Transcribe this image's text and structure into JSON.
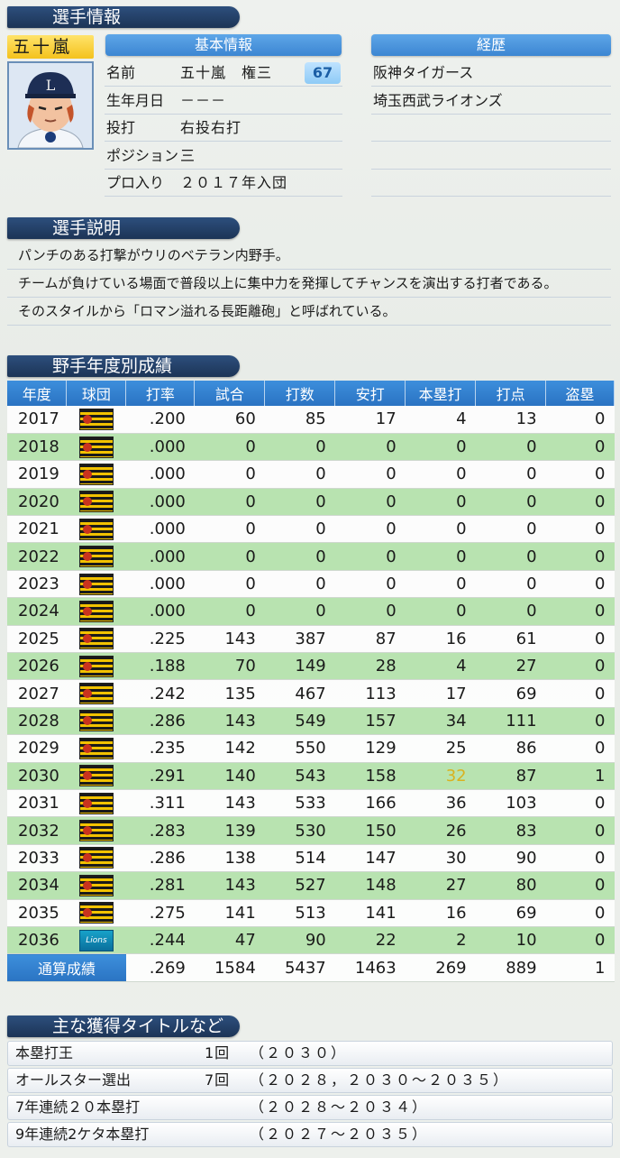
{
  "header": {
    "title": "選手情報"
  },
  "player": {
    "name": "五十嵐",
    "avatar_icon": "player-avatar-lions-cap"
  },
  "basic_info": {
    "title": "基本情報",
    "level": "67",
    "rows": [
      {
        "label": "名前",
        "value": "五十嵐　権三"
      },
      {
        "label": "生年月日",
        "value": "－－－"
      },
      {
        "label": "投打",
        "value": "右投右打"
      },
      {
        "label": "ポジション",
        "value": "三"
      },
      {
        "label": "プロ入り",
        "value": "２０１７年入団"
      }
    ]
  },
  "career": {
    "title": "経歴",
    "teams": [
      "阪神タイガース",
      "埼玉西武ライオンズ"
    ]
  },
  "description": {
    "title": "選手説明",
    "lines": [
      "パンチのある打撃がウリのベテラン内野手。",
      "チームが負けている場面で普段以上に集中力を発揮してチャンスを演出する打者である。",
      "そのスタイルから「ロマン溢れる長距離砲」と呼ばれている。"
    ]
  },
  "stats": {
    "title": "野手年度別成績",
    "headers": [
      "年度",
      "球団",
      "打率",
      "試合",
      "打数",
      "安打",
      "本塁打",
      "打点",
      "盗塁"
    ],
    "rows": [
      {
        "year": "2017",
        "team": "tigers",
        "avg": ".200",
        "g": "60",
        "ab": "85",
        "h": "17",
        "hr": "4",
        "rbi": "13",
        "sb": "0"
      },
      {
        "year": "2018",
        "team": "tigers",
        "avg": ".000",
        "g": "0",
        "ab": "0",
        "h": "0",
        "hr": "0",
        "rbi": "0",
        "sb": "0"
      },
      {
        "year": "2019",
        "team": "tigers",
        "avg": ".000",
        "g": "0",
        "ab": "0",
        "h": "0",
        "hr": "0",
        "rbi": "0",
        "sb": "0"
      },
      {
        "year": "2020",
        "team": "tigers",
        "avg": ".000",
        "g": "0",
        "ab": "0",
        "h": "0",
        "hr": "0",
        "rbi": "0",
        "sb": "0"
      },
      {
        "year": "2021",
        "team": "tigers",
        "avg": ".000",
        "g": "0",
        "ab": "0",
        "h": "0",
        "hr": "0",
        "rbi": "0",
        "sb": "0"
      },
      {
        "year": "2022",
        "team": "tigers",
        "avg": ".000",
        "g": "0",
        "ab": "0",
        "h": "0",
        "hr": "0",
        "rbi": "0",
        "sb": "0"
      },
      {
        "year": "2023",
        "team": "tigers",
        "avg": ".000",
        "g": "0",
        "ab": "0",
        "h": "0",
        "hr": "0",
        "rbi": "0",
        "sb": "0"
      },
      {
        "year": "2024",
        "team": "tigers",
        "avg": ".000",
        "g": "0",
        "ab": "0",
        "h": "0",
        "hr": "0",
        "rbi": "0",
        "sb": "0"
      },
      {
        "year": "2025",
        "team": "tigers",
        "avg": ".225",
        "g": "143",
        "ab": "387",
        "h": "87",
        "hr": "16",
        "rbi": "61",
        "sb": "0"
      },
      {
        "year": "2026",
        "team": "tigers",
        "avg": ".188",
        "g": "70",
        "ab": "149",
        "h": "28",
        "hr": "4",
        "rbi": "27",
        "sb": "0"
      },
      {
        "year": "2027",
        "team": "tigers",
        "avg": ".242",
        "g": "135",
        "ab": "467",
        "h": "113",
        "hr": "17",
        "rbi": "69",
        "sb": "0"
      },
      {
        "year": "2028",
        "team": "tigers",
        "avg": ".286",
        "g": "143",
        "ab": "549",
        "h": "157",
        "hr": "34",
        "rbi": "111",
        "sb": "0"
      },
      {
        "year": "2029",
        "team": "tigers",
        "avg": ".235",
        "g": "142",
        "ab": "550",
        "h": "129",
        "hr": "25",
        "rbi": "86",
        "sb": "0"
      },
      {
        "year": "2030",
        "team": "tigers",
        "avg": ".291",
        "g": "140",
        "ab": "543",
        "h": "158",
        "hr": "32",
        "rbi": "87",
        "sb": "1",
        "hr_highlight": "#d9b21f"
      },
      {
        "year": "2031",
        "team": "tigers",
        "avg": ".311",
        "g": "143",
        "ab": "533",
        "h": "166",
        "hr": "36",
        "rbi": "103",
        "sb": "0"
      },
      {
        "year": "2032",
        "team": "tigers",
        "avg": ".283",
        "g": "139",
        "ab": "530",
        "h": "150",
        "hr": "26",
        "rbi": "83",
        "sb": "0"
      },
      {
        "year": "2033",
        "team": "tigers",
        "avg": ".286",
        "g": "138",
        "ab": "514",
        "h": "147",
        "hr": "30",
        "rbi": "90",
        "sb": "0"
      },
      {
        "year": "2034",
        "team": "tigers",
        "avg": ".281",
        "g": "143",
        "ab": "527",
        "h": "148",
        "hr": "27",
        "rbi": "80",
        "sb": "0"
      },
      {
        "year": "2035",
        "team": "tigers",
        "avg": ".275",
        "g": "141",
        "ab": "513",
        "h": "141",
        "hr": "16",
        "rbi": "69",
        "sb": "0"
      },
      {
        "year": "2036",
        "team": "lions",
        "avg": ".244",
        "g": "47",
        "ab": "90",
        "h": "22",
        "hr": "2",
        "rbi": "10",
        "sb": "0"
      }
    ],
    "total": {
      "label": "通算成績",
      "avg": ".269",
      "g": "1584",
      "ab": "5437",
      "h": "1463",
      "hr": "269",
      "rbi": "889",
      "sb": "1"
    }
  },
  "titles": {
    "title": "主な獲得タイトルなど",
    "items": [
      {
        "name": "本塁打王",
        "count": "1回",
        "years": "（２０３０）"
      },
      {
        "name": "オールスター選出",
        "count": "7回",
        "years": "（２０２８，２０３０～２０３５）"
      },
      {
        "name": "7年連続２０本塁打",
        "count": "",
        "years": "（２０２８～２０３４）"
      },
      {
        "name": "9年連続2ケタ本塁打",
        "count": "",
        "years": "（２０２７～２０３５）"
      }
    ]
  },
  "team_logos": {
    "tigers": "tigers-logo-icon",
    "lions": "lions-logo-icon"
  },
  "team_logo_text": {
    "lions": "Lions"
  },
  "colors": {
    "highlight": "#d9b21f",
    "header_dark": "#1c3456",
    "header_blue": "#2a73c2",
    "row_green": "#b8e3b0"
  }
}
